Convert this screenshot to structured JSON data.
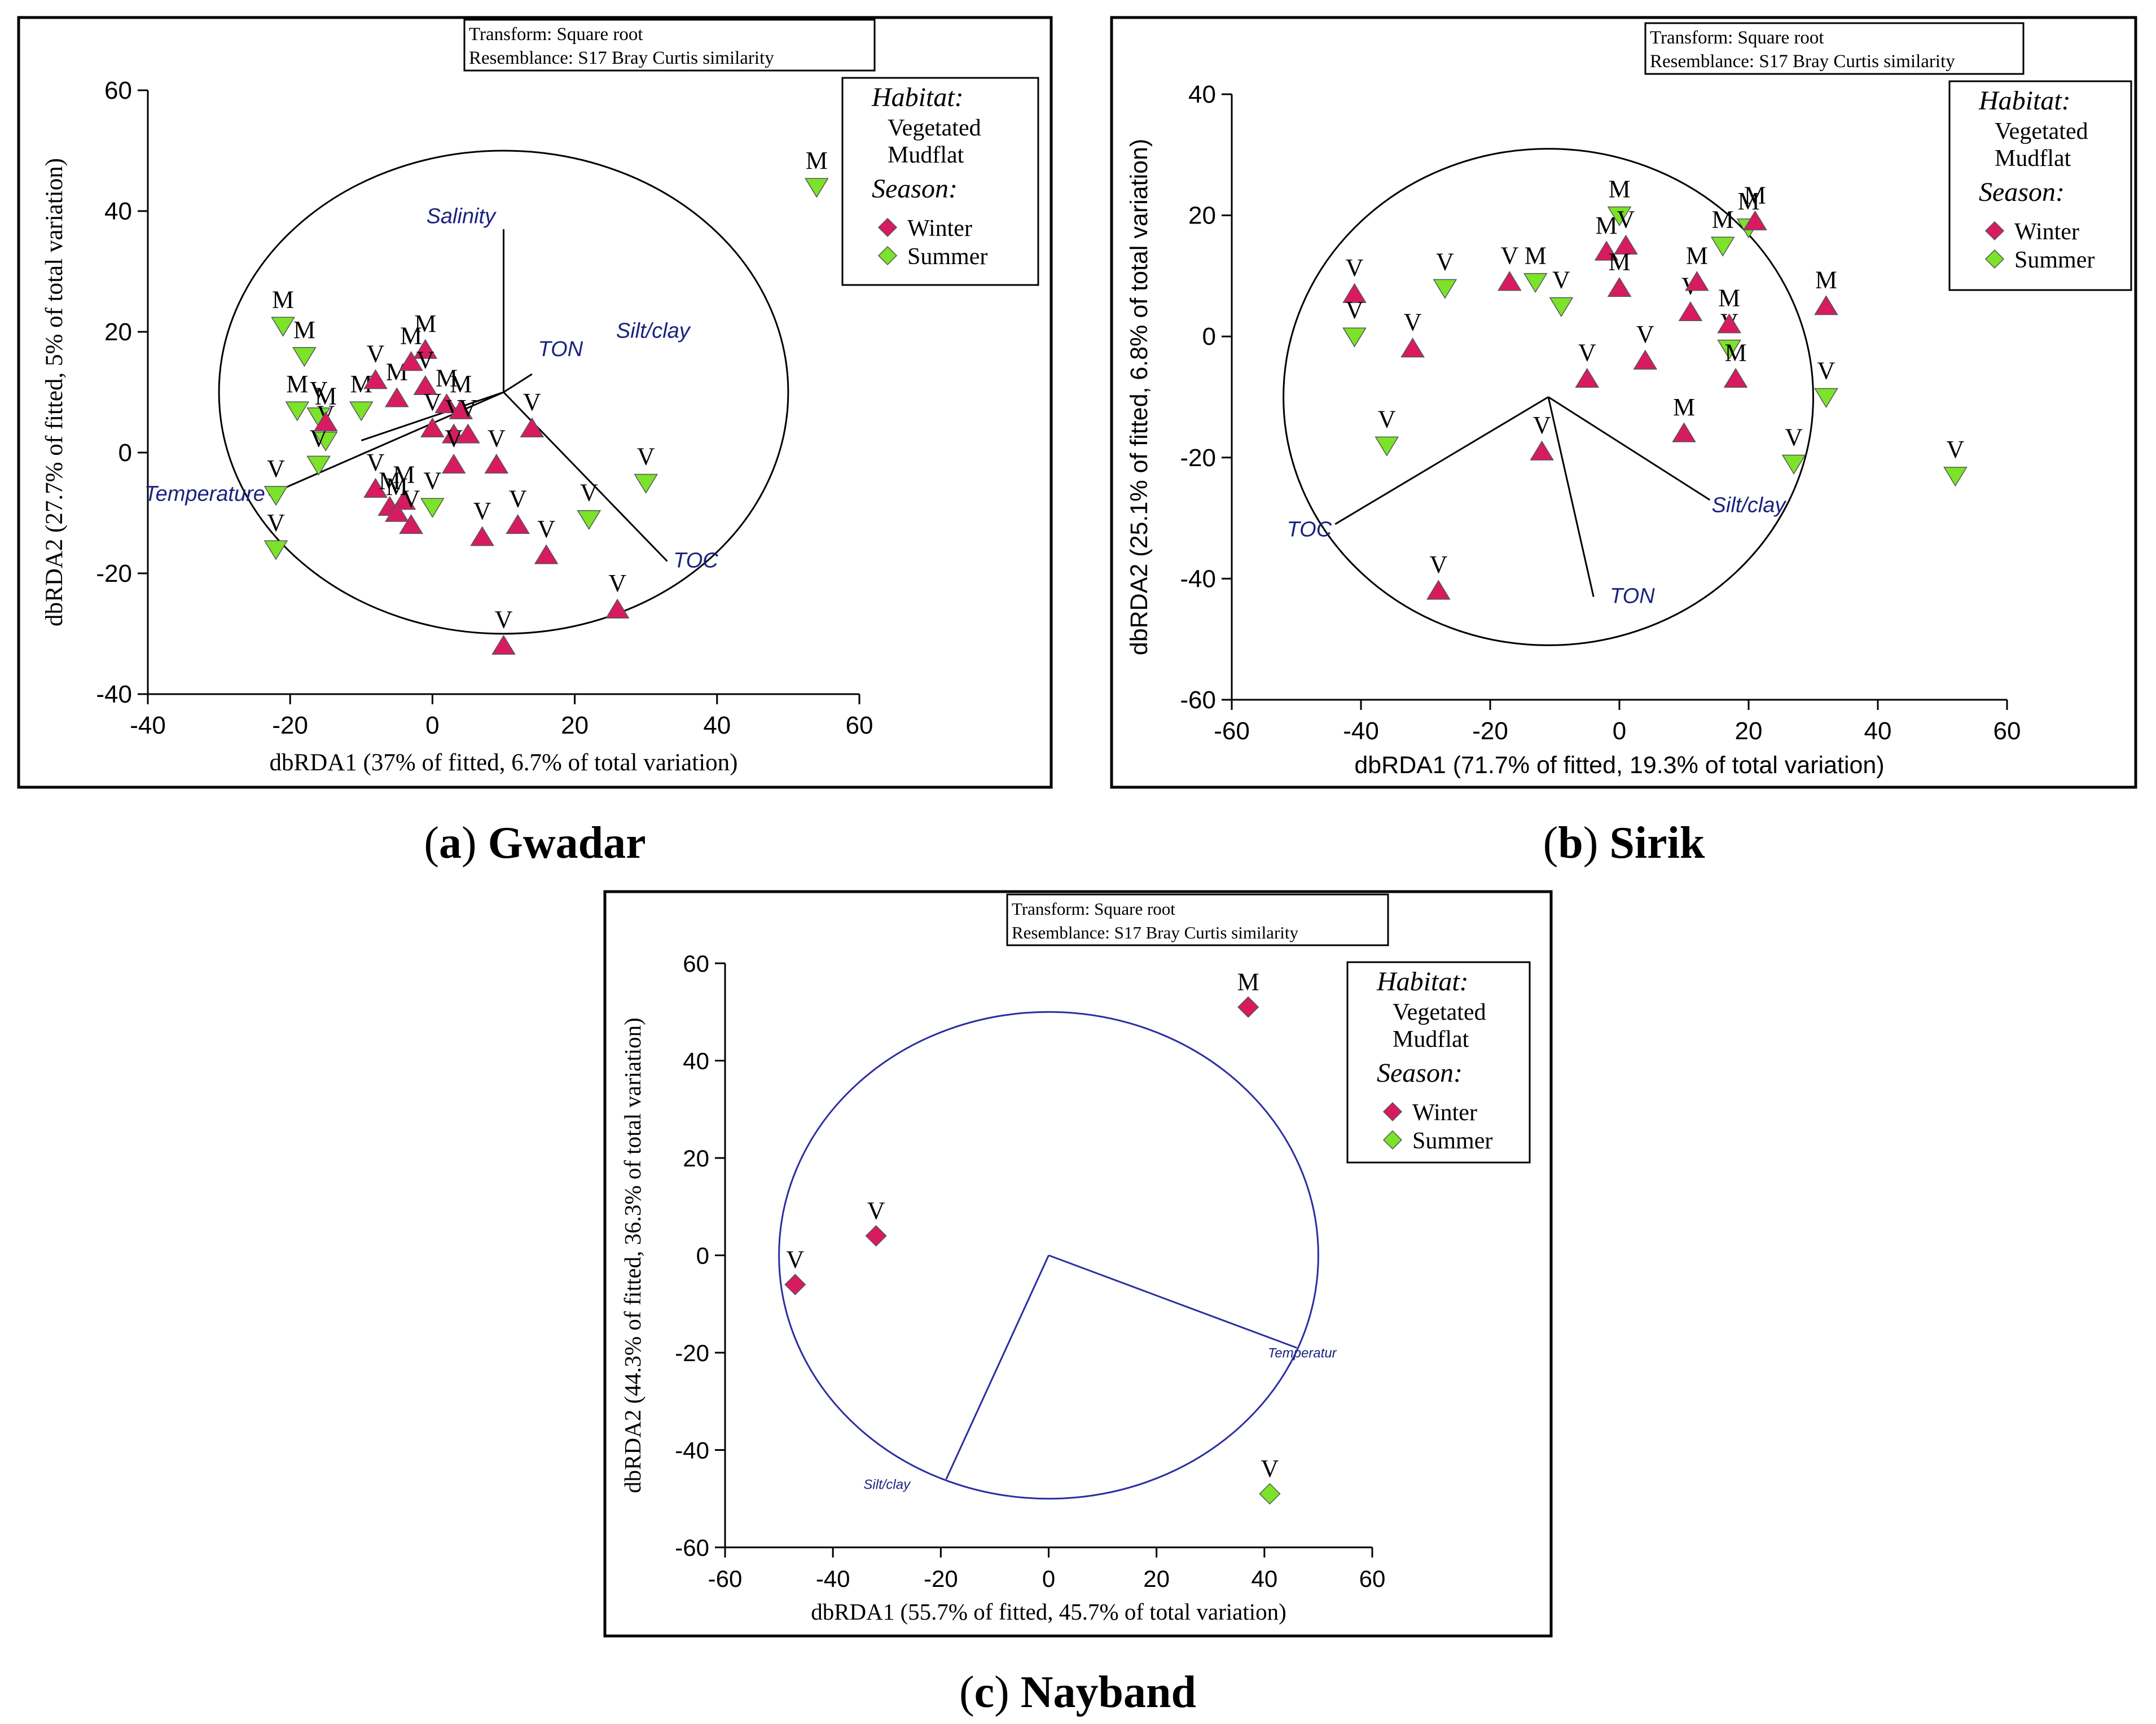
{
  "colors": {
    "winter": "#d81b60",
    "summer": "#7be32a",
    "vector": "#000000",
    "vector_blue": "#2a2ea0",
    "label_blue": "#1a237e"
  },
  "chart_data": [
    {
      "id": "gwadar",
      "type": "scatter",
      "caption_letter": "a",
      "caption_name": "Gwadar",
      "xlabel": "dbRDA1 (37% of fitted, 6.7% of total variation)",
      "ylabel": "dbRDA2 (27.7% of fitted, 5% of total variation)",
      "xlim": [
        -40,
        60
      ],
      "ylim": [
        -40,
        60
      ],
      "xticks": [
        "-40",
        "-20",
        "0",
        "20",
        "40",
        "60"
      ],
      "yticks": [
        "-40",
        "-20",
        "0",
        "20",
        "40",
        "60"
      ],
      "transform_note": "Transform: Square root",
      "resemblance_note": "Resemblance: S17 Bray Curtis similarity",
      "legend": {
        "habitat_title": "Habitat:",
        "habitat_items": [
          "Vegetated",
          "Mudflat"
        ],
        "season_title": "Season:",
        "season_items": [
          "Winter",
          "Summer"
        ]
      },
      "marker": "triangle",
      "circle": {
        "cx": 10,
        "cy": 10,
        "r": 40
      },
      "vector_origin": [
        10,
        10
      ],
      "vectors": [
        {
          "name": "Salinity",
          "x": 10,
          "y": 37
        },
        {
          "name": "TON",
          "x": 14,
          "y": 13
        },
        {
          "name": "Silt/clay",
          "x": -10,
          "y": 2
        },
        {
          "name": "Temperature",
          "x": -23,
          "y": -7
        },
        {
          "name": "TOC",
          "x": 33,
          "y": -18
        }
      ],
      "vector_labels": [
        {
          "name": "Salinity",
          "x": 4,
          "y": 38
        },
        {
          "name": "TON",
          "x": 18,
          "y": 16
        },
        {
          "name": "Silt/clay",
          "x": 31,
          "y": 19
        },
        {
          "name": "Temperature",
          "x": -32,
          "y": -8
        },
        {
          "name": "TOC",
          "x": 37,
          "y": -19
        }
      ],
      "points": [
        {
          "season": "Summer",
          "label": "M",
          "x": 54,
          "y": 44
        },
        {
          "season": "Summer",
          "label": "M",
          "x": -21,
          "y": 21
        },
        {
          "season": "Summer",
          "label": "M",
          "x": -18,
          "y": 16
        },
        {
          "season": "Summer",
          "label": "M",
          "x": -19,
          "y": 7
        },
        {
          "season": "Summer",
          "label": "V",
          "x": -16,
          "y": 6
        },
        {
          "season": "Summer",
          "label": "V",
          "x": -15,
          "y": 2
        },
        {
          "season": "Summer",
          "label": "V",
          "x": -16,
          "y": -2
        },
        {
          "season": "Summer",
          "label": "M",
          "x": -10,
          "y": 7
        },
        {
          "season": "Summer",
          "label": "V",
          "x": -22,
          "y": -7
        },
        {
          "season": "Summer",
          "label": "V",
          "x": -22,
          "y": -16
        },
        {
          "season": "Summer",
          "label": "V",
          "x": 0,
          "y": -9
        },
        {
          "season": "Summer",
          "label": "V",
          "x": 22,
          "y": -11
        },
        {
          "season": "Summer",
          "label": "V",
          "x": 30,
          "y": -5
        },
        {
          "season": "Winter",
          "label": "M",
          "x": -15,
          "y": 5
        },
        {
          "season": "Winter",
          "label": "V",
          "x": -8,
          "y": 12
        },
        {
          "season": "Winter",
          "label": "M",
          "x": -5,
          "y": 9
        },
        {
          "season": "Winter",
          "label": "M",
          "x": -3,
          "y": 15
        },
        {
          "season": "Winter",
          "label": "M",
          "x": -1,
          "y": 17
        },
        {
          "season": "Winter",
          "label": "V",
          "x": -1,
          "y": 11
        },
        {
          "season": "Winter",
          "label": "V",
          "x": 0,
          "y": 4
        },
        {
          "season": "Winter",
          "label": "M",
          "x": 2,
          "y": 8
        },
        {
          "season": "Winter",
          "label": "V",
          "x": 3,
          "y": 3
        },
        {
          "season": "Winter",
          "label": "M",
          "x": 4,
          "y": 7
        },
        {
          "season": "Winter",
          "label": "V",
          "x": 5,
          "y": 3
        },
        {
          "season": "Winter",
          "label": "V",
          "x": 3,
          "y": -2
        },
        {
          "season": "Winter",
          "label": "V",
          "x": 9,
          "y": -2
        },
        {
          "season": "Winter",
          "label": "V",
          "x": 14,
          "y": 4
        },
        {
          "season": "Winter",
          "label": "V",
          "x": -8,
          "y": -6
        },
        {
          "season": "Winter",
          "label": "M",
          "x": -6,
          "y": -9
        },
        {
          "season": "Winter",
          "label": "M",
          "x": -4,
          "y": -8
        },
        {
          "season": "Winter",
          "label": "V",
          "x": -3,
          "y": -12
        },
        {
          "season": "Winter",
          "label": "M",
          "x": -5,
          "y": -10
        },
        {
          "season": "Winter",
          "label": "V",
          "x": 7,
          "y": -14
        },
        {
          "season": "Winter",
          "label": "V",
          "x": 12,
          "y": -12
        },
        {
          "season": "Winter",
          "label": "V",
          "x": 16,
          "y": -17
        },
        {
          "season": "Winter",
          "label": "V",
          "x": 26,
          "y": -26
        },
        {
          "season": "Winter",
          "label": "V",
          "x": 10,
          "y": -32
        }
      ]
    },
    {
      "id": "sirik",
      "type": "scatter",
      "caption_letter": "b",
      "caption_name": "Sirik",
      "xlabel": "dbRDA1 (71.7% of fitted, 19.3% of total variation)",
      "ylabel": "dbRDA2 (25.1% of fitted, 6.8% of total variation)",
      "xlim": [
        -60,
        60
      ],
      "ylim": [
        -60,
        40
      ],
      "xticks": [
        "-60",
        "-40",
        "-20",
        "0",
        "20",
        "40",
        "60"
      ],
      "yticks": [
        "-60",
        "-40",
        "-20",
        "0",
        "20",
        "40"
      ],
      "transform_note": "Transform: Square root",
      "resemblance_note": "Resemblance: S17 Bray Curtis similarity",
      "legend": {
        "habitat_title": "Habitat:",
        "habitat_items": [
          "Vegetated",
          "Mudflat"
        ],
        "season_title": "Season:",
        "season_items": [
          "Winter",
          "Summer"
        ]
      },
      "marker": "triangle",
      "circle": {
        "cx": -11,
        "cy": -10,
        "r": 41
      },
      "vector_origin": [
        -11,
        -10
      ],
      "vectors": [
        {
          "name": "TOC",
          "x": -44,
          "y": -31
        },
        {
          "name": "TON",
          "x": -4,
          "y": -43
        },
        {
          "name": "Silt/clay",
          "x": 14,
          "y": -27
        }
      ],
      "vector_labels": [
        {
          "name": "TOC",
          "x": -48,
          "y": -33
        },
        {
          "name": "TON",
          "x": 2,
          "y": -44
        },
        {
          "name": "Silt/clay",
          "x": 20,
          "y": -29
        }
      ],
      "points": [
        {
          "season": "Winter",
          "label": "V",
          "x": -41,
          "y": 7
        },
        {
          "season": "Summer",
          "label": "V",
          "x": -41,
          "y": 0
        },
        {
          "season": "Winter",
          "label": "V",
          "x": -32,
          "y": -2
        },
        {
          "season": "Summer",
          "label": "V",
          "x": -27,
          "y": 8
        },
        {
          "season": "Summer",
          "label": "V",
          "x": -36,
          "y": -18
        },
        {
          "season": "Winter",
          "label": "V",
          "x": -28,
          "y": -42
        },
        {
          "season": "Winter",
          "label": "V",
          "x": -17,
          "y": 9
        },
        {
          "season": "Summer",
          "label": "M",
          "x": -13,
          "y": 9
        },
        {
          "season": "Summer",
          "label": "V",
          "x": -9,
          "y": 5
        },
        {
          "season": "Winter",
          "label": "V",
          "x": -12,
          "y": -19
        },
        {
          "season": "Winter",
          "label": "V",
          "x": -5,
          "y": -7
        },
        {
          "season": "Winter",
          "label": "M",
          "x": -2,
          "y": 14
        },
        {
          "season": "Summer",
          "label": "M",
          "x": 0,
          "y": 20
        },
        {
          "season": "Winter",
          "label": "V",
          "x": 1,
          "y": 15
        },
        {
          "season": "Winter",
          "label": "M",
          "x": 0,
          "y": 8
        },
        {
          "season": "Winter",
          "label": "V",
          "x": 4,
          "y": -4
        },
        {
          "season": "Winter",
          "label": "M",
          "x": 10,
          "y": -16
        },
        {
          "season": "Winter",
          "label": "V",
          "x": 11,
          "y": 4
        },
        {
          "season": "Winter",
          "label": "M",
          "x": 12,
          "y": 9
        },
        {
          "season": "Summer",
          "label": "M",
          "x": 16,
          "y": 15
        },
        {
          "season": "Summer",
          "label": "V",
          "x": 17,
          "y": -2
        },
        {
          "season": "Winter",
          "label": "M",
          "x": 17,
          "y": 2
        },
        {
          "season": "Winter",
          "label": "M",
          "x": 18,
          "y": -7
        },
        {
          "season": "Summer",
          "label": "M",
          "x": 20,
          "y": 18
        },
        {
          "season": "Winter",
          "label": "M",
          "x": 21,
          "y": 19
        },
        {
          "season": "Winter",
          "label": "M",
          "x": 32,
          "y": 5
        },
        {
          "season": "Summer",
          "label": "V",
          "x": 32,
          "y": -10
        },
        {
          "season": "Summer",
          "label": "V",
          "x": 27,
          "y": -21
        },
        {
          "season": "Summer",
          "label": "V",
          "x": 52,
          "y": -23
        }
      ]
    },
    {
      "id": "nayband",
      "type": "scatter",
      "caption_letter": "c",
      "caption_name": "Nayband",
      "xlabel": "dbRDA1 (55.7% of fitted, 45.7% of total variation)",
      "ylabel": "dbRDA2 (44.3% of fitted, 36.3% of total variation)",
      "xlim": [
        -60,
        60
      ],
      "ylim": [
        -60,
        60
      ],
      "xticks": [
        "-60",
        "-40",
        "-20",
        "0",
        "20",
        "40",
        "60"
      ],
      "yticks": [
        "-60",
        "-40",
        "-20",
        "0",
        "20",
        "40",
        "60"
      ],
      "transform_note": "Transform: Square root",
      "resemblance_note": "Resemblance: S17 Bray Curtis similarity",
      "legend": {
        "habitat_title": "Habitat:",
        "habitat_items": [
          "Vegetated",
          "Mudflat"
        ],
        "season_title": "Season:",
        "season_items": [
          "Winter",
          "Summer"
        ]
      },
      "marker": "diamond",
      "circle": {
        "cx": 0,
        "cy": 0,
        "r": 50
      },
      "vector_origin": [
        0,
        0
      ],
      "vectors": [
        {
          "name": "Temperatur",
          "x": 46,
          "y": -19
        },
        {
          "name": "Silt/clay",
          "x": -19,
          "y": -46
        }
      ],
      "vector_labels": [
        {
          "name": "Temperatur",
          "x": 47,
          "y": -21
        },
        {
          "name": "Silt/clay",
          "x": -30,
          "y": -48
        }
      ],
      "points": [
        {
          "season": "Winter",
          "label": "M",
          "x": 37,
          "y": 51
        },
        {
          "season": "Winter",
          "label": "V",
          "x": -32,
          "y": 4
        },
        {
          "season": "Winter",
          "label": "V",
          "x": -47,
          "y": -6
        },
        {
          "season": "Summer",
          "label": "V",
          "x": 41,
          "y": -49
        }
      ]
    }
  ]
}
